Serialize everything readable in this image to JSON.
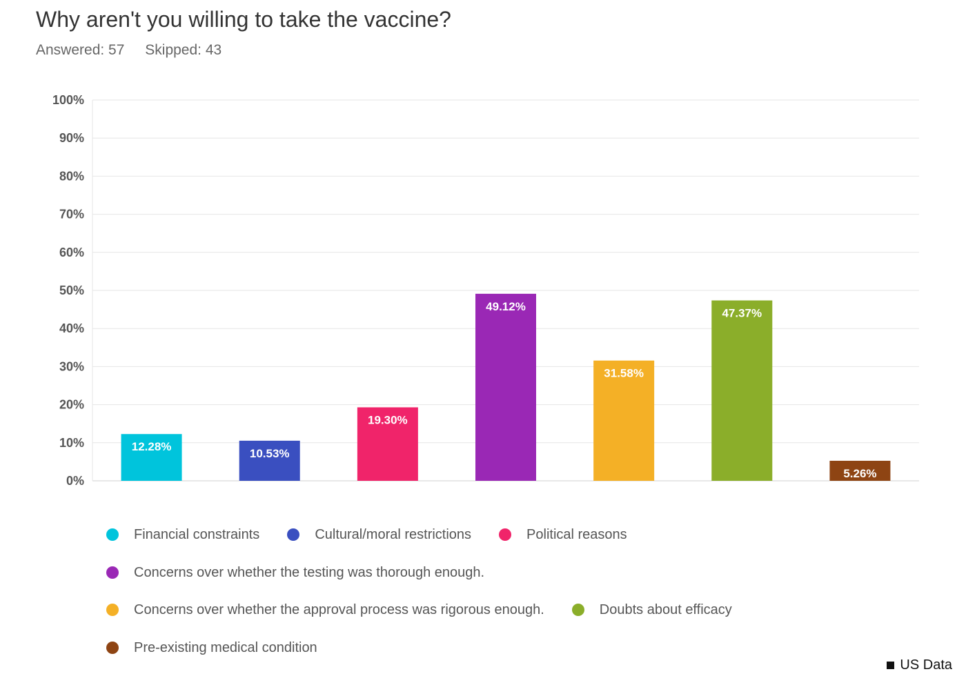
{
  "title": "Why aren't you willing to take the vaccine?",
  "answered": "Answered: 57",
  "skipped": "Skipped: 43",
  "source_note": "US Data",
  "chart_data": {
    "type": "bar",
    "categories": [
      "Financial constraints",
      "Cultural/moral restrictions",
      "Political reasons",
      "Concerns over whether the testing was thorough enough.",
      "Concerns over whether the approval process was rigorous enough.",
      "Doubts about efficacy",
      "Pre-existing medical condition"
    ],
    "values": [
      12.28,
      10.53,
      19.3,
      49.12,
      31.58,
      47.37,
      5.26
    ],
    "value_labels": [
      "12.28%",
      "10.53%",
      "19.30%",
      "49.12%",
      "31.58%",
      "47.37%",
      "5.26%"
    ],
    "colors": [
      "#00c4dc",
      "#3a4fc0",
      "#f0246a",
      "#9a28b5",
      "#f4b026",
      "#8bae2a",
      "#8e4413"
    ],
    "ylim": [
      0,
      100
    ],
    "yticks": [
      0,
      10,
      20,
      30,
      40,
      50,
      60,
      70,
      80,
      90,
      100
    ],
    "ytick_labels": [
      "0%",
      "10%",
      "20%",
      "30%",
      "40%",
      "50%",
      "60%",
      "70%",
      "80%",
      "90%",
      "100%"
    ],
    "grid": true,
    "legend": "bottom"
  }
}
